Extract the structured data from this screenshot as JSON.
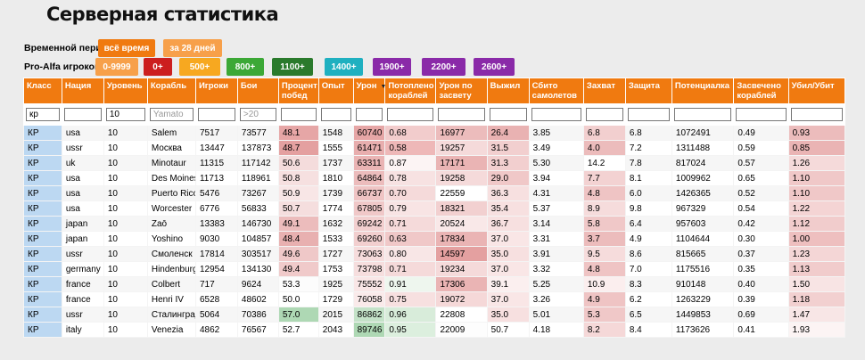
{
  "page": {
    "title": "Серверная статистика"
  },
  "period": {
    "label": "Временной период:",
    "buttons": [
      {
        "label": "всё время",
        "color": "#f07a10"
      },
      {
        "label": "за 28 дней",
        "color": "#f7a04a"
      }
    ]
  },
  "proalfa": {
    "label": "Pro-Alfa игроков:",
    "buttons": [
      {
        "label": "0-9999",
        "color": "#f7a04a"
      },
      {
        "label": "0+",
        "color": "#cc1f1f"
      },
      {
        "label": "500+",
        "color": "#f7a820"
      },
      {
        "label": "800+",
        "color": "#3ca836"
      },
      {
        "label": "1100+",
        "color": "#2a7a2c"
      },
      {
        "label": "1400+",
        "color": "#1fb0c0"
      },
      {
        "label": "1900+",
        "color": "#8a2aa8"
      },
      {
        "label": "2200+",
        "color": "#8a2aa8"
      },
      {
        "label": "2600+",
        "color": "#8a2aa8"
      }
    ]
  },
  "table": {
    "columns": [
      "Класс",
      "Нация",
      "Уровень",
      "Корабль",
      "Игроки",
      "Бои",
      "Процент побед",
      "Опыт",
      "Урон",
      "Потоплено кораблей",
      "Урон по засвету",
      "Выжил",
      "Сбито самолетов",
      "Захват",
      "Защита",
      "Потенциалка",
      "Засвечено кораблей",
      "Убил/Убит"
    ],
    "sorted_column": "Урон",
    "filters": [
      {
        "value": "кр",
        "placeholder": ""
      },
      {
        "value": "",
        "placeholder": ""
      },
      {
        "value": "10",
        "placeholder": ""
      },
      {
        "value": "",
        "placeholder": "Yamato"
      },
      {
        "value": "",
        "placeholder": ""
      },
      {
        "value": "",
        "placeholder": ">20"
      },
      {
        "value": "",
        "placeholder": ""
      },
      {
        "value": "",
        "placeholder": ""
      },
      {
        "value": "",
        "placeholder": ""
      },
      {
        "value": "",
        "placeholder": ""
      },
      {
        "value": "",
        "placeholder": ""
      },
      {
        "value": "",
        "placeholder": ""
      },
      {
        "value": "",
        "placeholder": ""
      },
      {
        "value": "",
        "placeholder": ""
      },
      {
        "value": "",
        "placeholder": ""
      },
      {
        "value": "",
        "placeholder": ""
      },
      {
        "value": "",
        "placeholder": ""
      },
      {
        "value": "",
        "placeholder": ""
      }
    ],
    "rows": [
      [
        "КР",
        "usa",
        "10",
        "Salem",
        "7517",
        "73577",
        "48.1",
        "1548",
        "60740",
        "0.68",
        "16977",
        "26.4",
        "3.85",
        "6.8",
        "6.8",
        "1072491",
        "0.49",
        "0.93"
      ],
      [
        "КР",
        "ussr",
        "10",
        "Москва",
        "13447",
        "137873",
        "48.7",
        "1555",
        "61471",
        "0.58",
        "19257",
        "31.5",
        "3.49",
        "4.0",
        "7.2",
        "1311488",
        "0.59",
        "0.85"
      ],
      [
        "КР",
        "uk",
        "10",
        "Minotaur",
        "11315",
        "117142",
        "50.6",
        "1737",
        "63311",
        "0.87",
        "17171",
        "31.3",
        "5.30",
        "14.2",
        "7.8",
        "817024",
        "0.57",
        "1.26"
      ],
      [
        "КР",
        "usa",
        "10",
        "Des Moines",
        "11713",
        "118961",
        "50.8",
        "1810",
        "64864",
        "0.78",
        "19258",
        "29.0",
        "3.94",
        "7.7",
        "8.1",
        "1009962",
        "0.65",
        "1.10"
      ],
      [
        "КР",
        "usa",
        "10",
        "Puerto Rico",
        "5476",
        "73267",
        "50.9",
        "1739",
        "66737",
        "0.70",
        "22559",
        "36.3",
        "4.31",
        "4.8",
        "6.0",
        "1426365",
        "0.52",
        "1.10"
      ],
      [
        "КР",
        "usa",
        "10",
        "Worcester",
        "6776",
        "56833",
        "50.7",
        "1774",
        "67805",
        "0.79",
        "18321",
        "35.4",
        "5.37",
        "8.9",
        "9.8",
        "967329",
        "0.54",
        "1.22"
      ],
      [
        "КР",
        "japan",
        "10",
        "Zaō",
        "13383",
        "146730",
        "49.1",
        "1632",
        "69242",
        "0.71",
        "20524",
        "36.7",
        "3.14",
        "5.8",
        "6.4",
        "957603",
        "0.42",
        "1.12"
      ],
      [
        "КР",
        "japan",
        "10",
        "Yoshino",
        "9030",
        "104857",
        "48.4",
        "1533",
        "69260",
        "0.63",
        "17834",
        "37.0",
        "3.31",
        "3.7",
        "4.9",
        "1104644",
        "0.30",
        "1.00"
      ],
      [
        "КР",
        "ussr",
        "10",
        "Смоленск",
        "17814",
        "303517",
        "49.6",
        "1727",
        "73063",
        "0.80",
        "14597",
        "35.0",
        "3.91",
        "9.5",
        "8.6",
        "815665",
        "0.37",
        "1.23"
      ],
      [
        "КР",
        "germany",
        "10",
        "Hindenburg",
        "12954",
        "134130",
        "49.4",
        "1753",
        "73798",
        "0.71",
        "19234",
        "37.0",
        "3.32",
        "4.8",
        "7.0",
        "1175516",
        "0.35",
        "1.13"
      ],
      [
        "КР",
        "france",
        "10",
        "Colbert",
        "717",
        "9624",
        "53.3",
        "1925",
        "75552",
        "0.91",
        "17306",
        "39.1",
        "5.25",
        "10.9",
        "8.3",
        "910148",
        "0.40",
        "1.50"
      ],
      [
        "КР",
        "france",
        "10",
        "Henri IV",
        "6528",
        "48602",
        "50.0",
        "1729",
        "76058",
        "0.75",
        "19072",
        "37.0",
        "3.26",
        "4.9",
        "6.2",
        "1263229",
        "0.39",
        "1.18"
      ],
      [
        "КР",
        "ussr",
        "10",
        "Сталинград",
        "5064",
        "70386",
        "57.0",
        "2015",
        "86862",
        "0.96",
        "22808",
        "35.0",
        "5.01",
        "5.3",
        "6.5",
        "1449853",
        "0.69",
        "1.47"
      ],
      [
        "КР",
        "italy",
        "10",
        "Venezia",
        "4862",
        "76567",
        "52.7",
        "2043",
        "89746",
        "0.95",
        "22009",
        "50.7",
        "4.18",
        "8.2",
        "8.4",
        "1173626",
        "0.41",
        "1.93"
      ]
    ],
    "cell_colors": {
      "6": [
        "#e6a6a6",
        "#e4a0a0",
        "#f4dcdc",
        "#f6e0e0",
        "#f8e6e6",
        "#f5dede",
        "#ecbcbc",
        "#e8b0b0",
        "#efc8c8",
        "#f0caca",
        "#fcfcfc",
        "#ffffff",
        "#aed8b4",
        "#ffffff"
      ],
      "8": [
        "#e6a6a6",
        "#e8aeae",
        "#eab4b4",
        "#ecbcbc",
        "#efc4c4",
        "#f0c8c8",
        "#f2cfcf",
        "#f2cfcf",
        "#f6dcdc",
        "#f6dede",
        "#f9e6e6",
        "#faeaea",
        "#c4e2c8",
        "#aed8b4"
      ],
      "9": [
        "#f2cccc",
        "#eeb8b8",
        "#fcf4f4",
        "#f7e2e2",
        "#f5dada",
        "#f8e4e4",
        "#f5dada",
        "#f0c8c8",
        "#f8e6e6",
        "#f5dada",
        "#eef6ee",
        "#f7e0e0",
        "#d8ecda",
        "#dcefde"
      ],
      "10": [
        "#ecbcbc",
        "#f5dada",
        "#eab4b4",
        "#f5dada",
        "#ffffff",
        "#f2d0d0",
        "#f9e8e8",
        "#eab4b4",
        "#e4a0a0",
        "#f5dada",
        "#eab4b4",
        "#f5d8d8",
        "#ffffff",
        "#fdfdfd"
      ],
      "11": [
        "#e9b2b2",
        "#f2cfcf",
        "#f2cfcf",
        "#f0c8c8",
        "#f7e0e0",
        "#f7e0e0",
        "#f7e0e0",
        "#f9e6e6",
        "#f7e0e0",
        "#f9e6e6",
        "#fbefef",
        "#f9e6e6",
        "#f7e0e0",
        "#ffffff"
      ],
      "13": [
        "#f2cfcf",
        "#ecbcbc",
        "#ffffff",
        "#f3d2d2",
        "#efc4c4",
        "#f6dcdc",
        "#f0c8c8",
        "#ecbcbc",
        "#f6dcdc",
        "#efc4c4",
        "#fbeeee",
        "#efc4c4",
        "#f0c8c8",
        "#f5d8d8"
      ],
      "17": [
        "#ecbcbc",
        "#eab4b4",
        "#f5dada",
        "#f0c8c8",
        "#f0c8c8",
        "#f4d4d4",
        "#f1cccc",
        "#eebfbf",
        "#f4d6d6",
        "#f1cccc",
        "#f8e4e4",
        "#f2d0d0",
        "#f8e6e6",
        "#fcf4f4"
      ]
    }
  }
}
